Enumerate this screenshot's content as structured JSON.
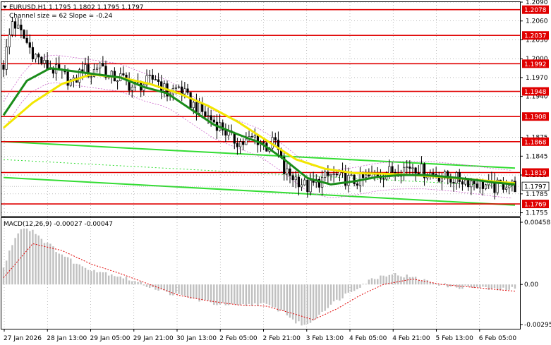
{
  "header": {
    "symbol_line": "EURUSD,H1  1.1795 1.1802 1.1795 1.1797",
    "channel_line": "Channel size = 62 Slope = -0.24"
  },
  "macd": {
    "label": "MACD(12,26,9) -0.00027 -0.00047",
    "ticks": [
      "0.00458",
      "0.00",
      "-0.00295"
    ]
  },
  "colors": {
    "background": "#ffffff",
    "candles": "#000000",
    "level_line": "#e00000",
    "level_label_bg": "#e00000",
    "ma_fast": "#1a8c1a",
    "ma_slow": "#f2e600",
    "channel": "#33dd33",
    "envelope": "#cc66cc",
    "macd_hist": "#c0c0c0",
    "macd_signal": "#e00000",
    "grid": "#909090"
  },
  "chart_data": {
    "type": "candlestick",
    "symbol": "EURUSD",
    "timeframe": "H1",
    "ylim": [
      1.175,
      1.209
    ],
    "price_ticks": [
      "1.2090",
      "1.2060",
      "1.2030",
      "1.2000",
      "1.1970",
      "1.1940",
      "1.1875",
      "1.1845",
      "1.1815",
      "1.1785",
      "1.1755"
    ],
    "levels": [
      "1.2078",
      "1.2037",
      "1.1992",
      "1.1948",
      "1.1908",
      "1.1868",
      "1.1819",
      "1.1769"
    ],
    "current_price": "1.1797",
    "x_ticks": [
      "27 Jan 2026",
      "28 Jan 13:00",
      "29 Jan 05:00",
      "29 Jan 21:00",
      "30 Jan 13:00",
      "2 Feb 05:00",
      "2 Feb 21:00",
      "3 Feb 13:00",
      "4 Feb 05:00",
      "4 Feb 21:00",
      "5 Feb 13:00",
      "6 Feb 05:00"
    ],
    "close_path": [
      [
        0,
        1.199
      ],
      [
        3,
        1.206
      ],
      [
        6,
        1.204
      ],
      [
        10,
        1.201
      ],
      [
        14,
        1.199
      ],
      [
        20,
        1.1975
      ],
      [
        24,
        1.196
      ],
      [
        27,
        1.1985
      ],
      [
        30,
        1.1975
      ],
      [
        33,
        1.1995
      ],
      [
        36,
        1.197
      ],
      [
        40,
        1.197
      ],
      [
        44,
        1.1955
      ],
      [
        48,
        1.196
      ],
      [
        52,
        1.197
      ],
      [
        56,
        1.1945
      ],
      [
        60,
        1.1955
      ],
      [
        64,
        1.193
      ],
      [
        68,
        1.1915
      ],
      [
        72,
        1.19
      ],
      [
        75,
        1.189
      ],
      [
        78,
        1.1872
      ],
      [
        82,
        1.1866
      ],
      [
        86,
        1.1875
      ],
      [
        90,
        1.186
      ],
      [
        93,
        1.1868
      ],
      [
        96,
        1.182
      ],
      [
        100,
        1.181
      ],
      [
        104,
        1.1795
      ],
      [
        108,
        1.1805
      ],
      [
        112,
        1.1815
      ],
      [
        116,
        1.181
      ],
      [
        120,
        1.1805
      ],
      [
        124,
        1.181
      ],
      [
        128,
        1.1815
      ],
      [
        132,
        1.182
      ],
      [
        136,
        1.1825
      ],
      [
        140,
        1.183
      ],
      [
        144,
        1.182
      ],
      [
        148,
        1.1815
      ],
      [
        152,
        1.181
      ],
      [
        156,
        1.1808
      ],
      [
        160,
        1.1805
      ],
      [
        164,
        1.18
      ],
      [
        168,
        1.1795
      ],
      [
        172,
        1.1802
      ],
      [
        175,
        1.1797
      ]
    ],
    "ma_fast": [
      [
        0,
        1.191
      ],
      [
        8,
        1.1965
      ],
      [
        16,
        1.1985
      ],
      [
        24,
        1.198
      ],
      [
        32,
        1.1975
      ],
      [
        40,
        1.197
      ],
      [
        48,
        1.1955
      ],
      [
        56,
        1.1945
      ],
      [
        64,
        1.192
      ],
      [
        72,
        1.1895
      ],
      [
        80,
        1.188
      ],
      [
        88,
        1.1866
      ],
      [
        96,
        1.184
      ],
      [
        104,
        1.181
      ],
      [
        112,
        1.18
      ],
      [
        120,
        1.1805
      ],
      [
        128,
        1.1812
      ],
      [
        136,
        1.1815
      ],
      [
        144,
        1.1815
      ],
      [
        152,
        1.1812
      ],
      [
        160,
        1.1808
      ],
      [
        168,
        1.1803
      ],
      [
        175,
        1.18
      ]
    ],
    "ma_slow": [
      [
        0,
        1.189
      ],
      [
        10,
        1.193
      ],
      [
        20,
        1.196
      ],
      [
        30,
        1.1975
      ],
      [
        40,
        1.197
      ],
      [
        50,
        1.196
      ],
      [
        60,
        1.1945
      ],
      [
        70,
        1.1925
      ],
      [
        80,
        1.19
      ],
      [
        90,
        1.187
      ],
      [
        100,
        1.184
      ],
      [
        110,
        1.1825
      ],
      [
        120,
        1.1818
      ],
      [
        130,
        1.1817
      ],
      [
        140,
        1.1815
      ],
      [
        150,
        1.1812
      ],
      [
        160,
        1.1808
      ],
      [
        170,
        1.1804
      ],
      [
        175,
        1.1802
      ]
    ],
    "channel_upper": [
      [
        0,
        1.1868
      ],
      [
        175,
        1.1826
      ]
    ],
    "channel_lower": [
      [
        0,
        1.1811
      ],
      [
        175,
        1.1767
      ]
    ],
    "macd_hist": [
      [
        0,
        0.0012
      ],
      [
        3,
        0.003
      ],
      [
        6,
        0.0042
      ],
      [
        10,
        0.004
      ],
      [
        14,
        0.0032
      ],
      [
        20,
        0.0022
      ],
      [
        26,
        0.0014
      ],
      [
        32,
        0.001
      ],
      [
        40,
        0.0006
      ],
      [
        48,
        0.0
      ],
      [
        56,
        -0.0006
      ],
      [
        64,
        -0.001
      ],
      [
        72,
        -0.0014
      ],
      [
        80,
        -0.0016
      ],
      [
        88,
        -0.0014
      ],
      [
        96,
        -0.002
      ],
      [
        100,
        -0.0028
      ],
      [
        104,
        -0.003
      ],
      [
        110,
        -0.0018
      ],
      [
        118,
        -0.0006
      ],
      [
        126,
        0.0004
      ],
      [
        132,
        0.0008
      ],
      [
        138,
        0.0006
      ],
      [
        146,
        0.0002
      ],
      [
        154,
        -0.0002
      ],
      [
        162,
        -0.0002
      ],
      [
        168,
        -0.0004
      ],
      [
        175,
        -0.0003
      ]
    ],
    "macd_signal": [
      [
        0,
        0.0005
      ],
      [
        10,
        0.003
      ],
      [
        20,
        0.0025
      ],
      [
        30,
        0.0015
      ],
      [
        40,
        0.0008
      ],
      [
        50,
        0.0
      ],
      [
        60,
        -0.0008
      ],
      [
        70,
        -0.0012
      ],
      [
        80,
        -0.0015
      ],
      [
        90,
        -0.0016
      ],
      [
        100,
        -0.0022
      ],
      [
        106,
        -0.0026
      ],
      [
        114,
        -0.0018
      ],
      [
        122,
        -0.0008
      ],
      [
        130,
        0.0
      ],
      [
        140,
        0.0004
      ],
      [
        150,
        0.0
      ],
      [
        160,
        -0.0002
      ],
      [
        175,
        -0.0005
      ]
    ]
  }
}
